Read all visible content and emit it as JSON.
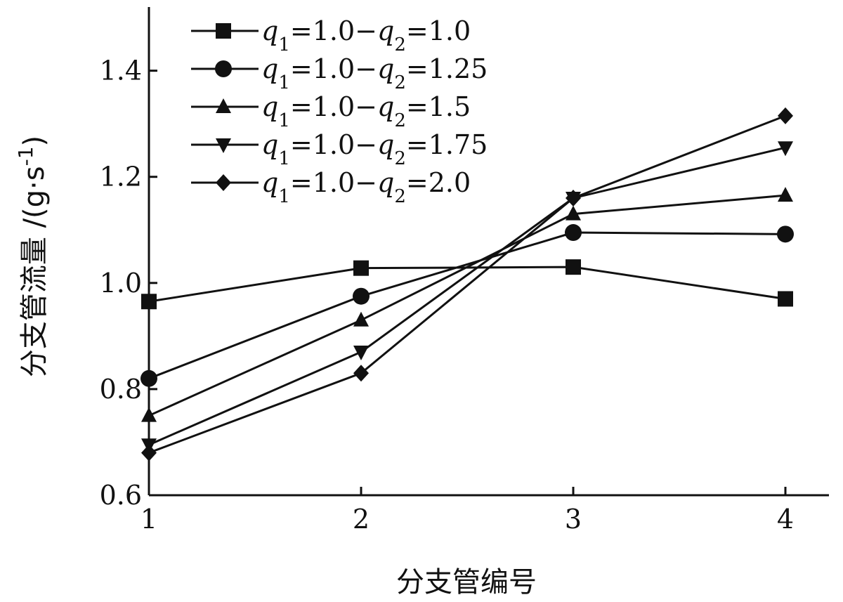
{
  "chart_data": {
    "type": "line",
    "x": [
      1,
      2,
      3,
      4
    ],
    "xlim": [
      1,
      4.2
    ],
    "ylim": [
      0.6,
      1.52
    ],
    "xticks": [
      "1",
      "2",
      "3",
      "4"
    ],
    "yticks": [
      "0.6",
      "0.8",
      "1.0",
      "1.2",
      "1.4"
    ],
    "ytick_values": [
      0.6,
      0.8,
      1.0,
      1.2,
      1.4
    ],
    "xlabel": "分支管编号",
    "ylabel": "分支管流量 /(g·s⁻¹)",
    "ylabel_main": "分支管流量 /(g·s",
    "ylabel_exp": "-1",
    "ylabel_close": ")",
    "legend_position": "top-left",
    "grid": false,
    "color": "#111111",
    "series": [
      {
        "name": "q1=1.0−q2=1.0",
        "name_parts": [
          "1.0−",
          "1.0"
        ],
        "marker": "square",
        "values": [
          0.965,
          1.028,
          1.03,
          0.97
        ]
      },
      {
        "name": "q1=1.0−q2=1.25",
        "name_parts": [
          "1.0−",
          "1.25"
        ],
        "marker": "circle",
        "values": [
          0.82,
          0.975,
          1.095,
          1.092
        ]
      },
      {
        "name": "q1=1.0−q2=1.5",
        "name_parts": [
          "1.0−",
          "1.5"
        ],
        "marker": "triangle-up",
        "values": [
          0.75,
          0.93,
          1.13,
          1.165
        ]
      },
      {
        "name": "q1=1.0−q2=1.75",
        "name_parts": [
          "1.0−",
          "1.75"
        ],
        "marker": "triangle-down",
        "values": [
          0.695,
          0.87,
          1.16,
          1.255
        ]
      },
      {
        "name": "q1=1.0−q2=2.0",
        "name_parts": [
          "1.0−",
          "2.0"
        ],
        "marker": "diamond",
        "values": [
          0.68,
          0.83,
          1.16,
          1.315
        ]
      }
    ]
  }
}
